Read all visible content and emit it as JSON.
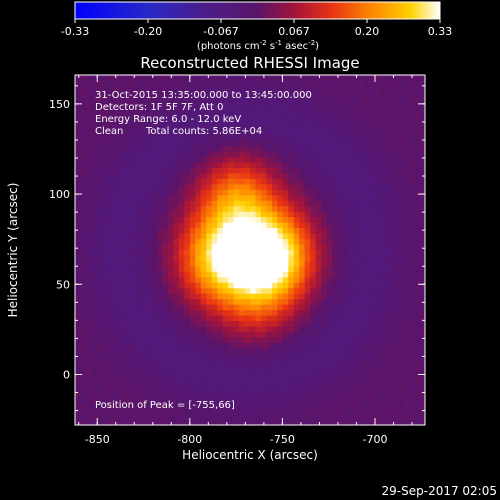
{
  "chart_data": {
    "type": "heatmap",
    "title": "Reconstructed RHESSI Image",
    "xlabel": "Heliocentric X (arcsec)",
    "ylabel": "Heliocentric Y (arcsec)",
    "xlim": [
      -862,
      -673
    ],
    "ylim": [
      -28,
      166
    ],
    "xticks": [
      -850,
      -800,
      -750,
      -700
    ],
    "yticks": [
      0,
      50,
      100,
      150
    ],
    "colorbar": {
      "min": -0.33,
      "max": 0.33,
      "ticks": [
        "-0.33",
        "-0.20",
        "-0.067",
        "0.067",
        "0.20",
        "0.33"
      ],
      "unit_prefix": "(photons cm",
      "unit_sup1": "-2",
      "unit_mid": " s",
      "unit_sup2": "-1",
      "unit_mid2": " asec",
      "unit_sup3": "-2",
      "unit_suffix": ")"
    },
    "annotations": {
      "time_range": "31-Oct-2015 13:35:00.000 to 13:45:00.000",
      "detectors": "Detectors: 1F 5F 7F, Att 0",
      "energy_range": "Energy Range: 6.0 - 12.0 keV",
      "method": "Clean",
      "total_counts": "Total counts: 5.86E+04",
      "peak": "Position of Peak = [-755,66]"
    },
    "peak": {
      "x": -755,
      "y": 66
    },
    "sources": [
      {
        "x": -755,
        "y": 66,
        "amp": 0.33
      },
      {
        "x": -785,
        "y": 64,
        "amp": 0.26
      },
      {
        "x": -774,
        "y": 96,
        "amp": 0.2
      },
      {
        "x": -765,
        "y": 42,
        "amp": 0.12
      }
    ]
  },
  "footer": {
    "timestamp": "29-Sep-2017 02:05"
  }
}
